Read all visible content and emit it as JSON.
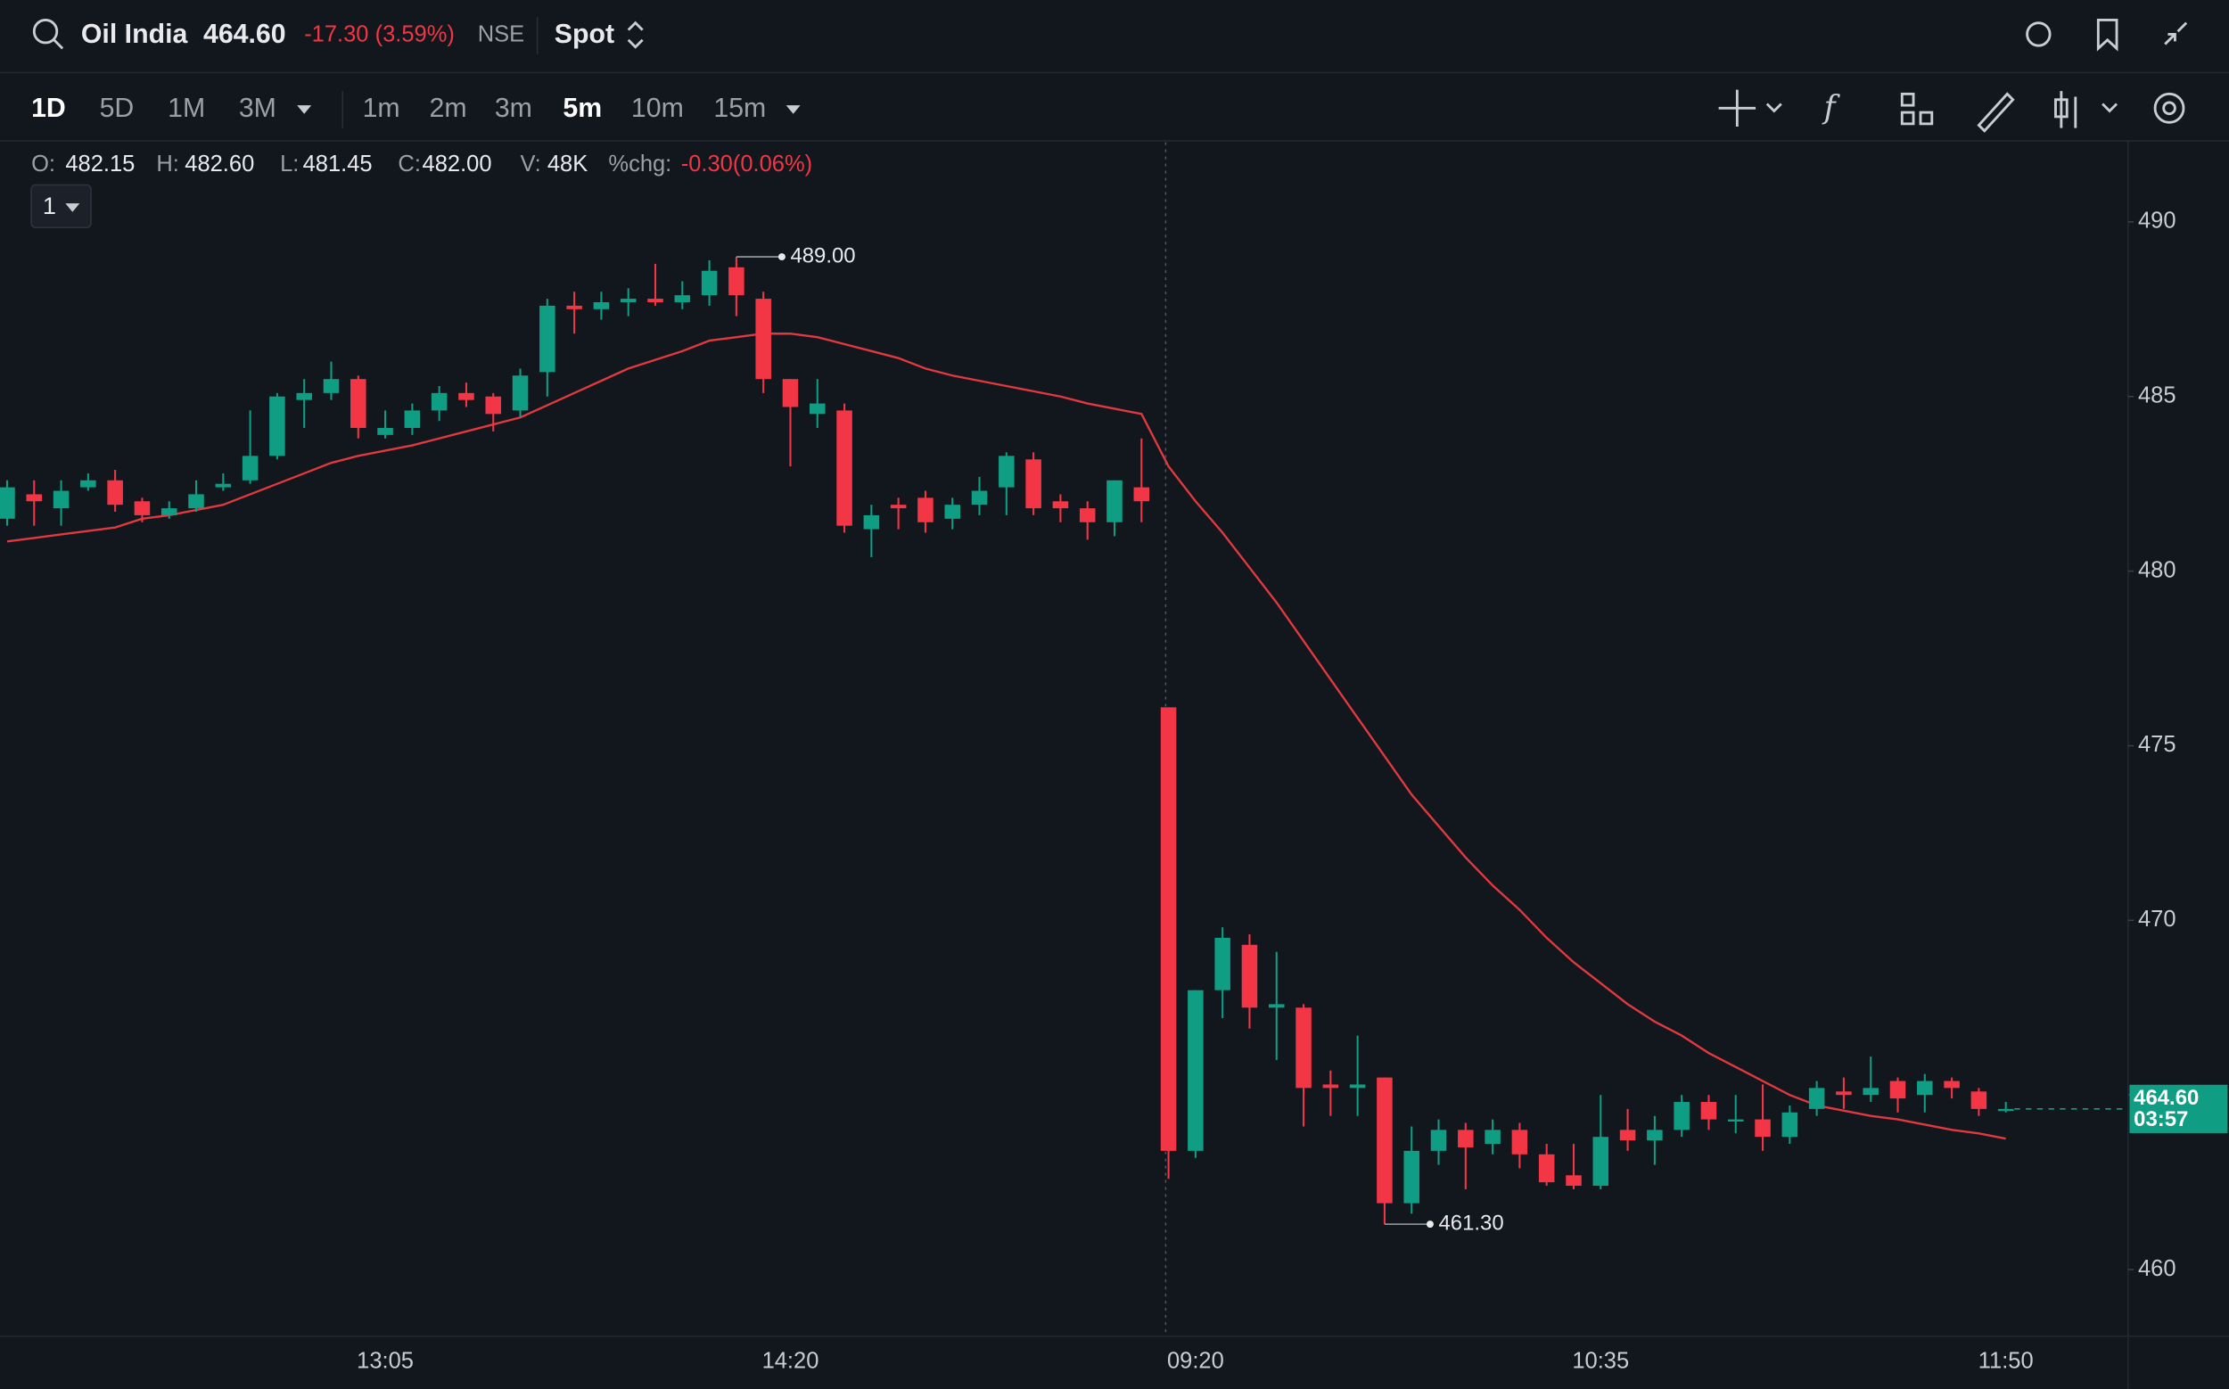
{
  "header": {
    "symbol": "Oil India",
    "price": "464.60",
    "change": "-17.30 (3.59%)",
    "exchange": "NSE",
    "mode": "Spot"
  },
  "toolbar": {
    "ranges": [
      "1D",
      "5D",
      "1M",
      "3M"
    ],
    "intervals": [
      "1m",
      "2m",
      "3m",
      "5m",
      "10m",
      "15m"
    ]
  },
  "legend": {
    "o_label": "O:",
    "o": "482.15",
    "h_label": "H:",
    "h": "482.60",
    "l_label": "L:",
    "l": "481.45",
    "c_label": "C:",
    "c": "482.00",
    "v_label": "V:",
    "v": "48K",
    "chg_label": "%chg:",
    "chg": "-0.30(0.06%)"
  },
  "pane_selector": "1",
  "chart_data": {
    "type": "candlestick",
    "categories": [
      null,
      null,
      null,
      null,
      null,
      null,
      null,
      null,
      null,
      null,
      null,
      null,
      null,
      null,
      "13:05",
      null,
      null,
      null,
      null,
      null,
      null,
      null,
      null,
      null,
      null,
      null,
      null,
      null,
      null,
      "14:20",
      null,
      null,
      null,
      null,
      null,
      null,
      null,
      null,
      null,
      null,
      null,
      null,
      null,
      null,
      "09:20",
      null,
      null,
      null,
      null,
      null,
      null,
      null,
      null,
      null,
      null,
      null,
      null,
      null,
      null,
      "10:35",
      null,
      null,
      null,
      null,
      null,
      null,
      null,
      null,
      null,
      null,
      null,
      null,
      null,
      null,
      "11:50"
    ],
    "candles": {
      "up_color": "#0f9d84",
      "down_color": "#f23645",
      "open": [
        481.5,
        482.2,
        481.8,
        482.4,
        482.6,
        482.0,
        481.6,
        481.8,
        482.4,
        482.6,
        483.3,
        484.9,
        485.1,
        485.5,
        483.9,
        484.1,
        484.6,
        485.1,
        485.0,
        484.6,
        485.7,
        487.6,
        487.5,
        487.7,
        487.8,
        487.7,
        487.9,
        488.7,
        487.8,
        485.5,
        484.5,
        484.6,
        481.2,
        481.9,
        482.1,
        481.5,
        481.9,
        482.4,
        483.2,
        482.0,
        481.8,
        481.4,
        482.4,
        476.1,
        463.4,
        468.0,
        469.3,
        467.5,
        467.5,
        465.3,
        465.2,
        465.5,
        461.9,
        463.4,
        464.0,
        463.6,
        464.0,
        463.3,
        462.7,
        462.4,
        464.0,
        463.7,
        464.0,
        464.8,
        464.3,
        464.3,
        463.8,
        464.6,
        465.1,
        465.0,
        465.4,
        465.0,
        465.4,
        465.1,
        464.6
      ],
      "high": [
        482.6,
        482.6,
        482.6,
        482.8,
        482.9,
        482.1,
        482.0,
        482.6,
        482.8,
        484.6,
        485.1,
        485.5,
        486.0,
        485.6,
        484.6,
        484.8,
        485.3,
        485.4,
        485.1,
        485.8,
        487.8,
        488.0,
        488.0,
        488.1,
        488.8,
        488.3,
        488.9,
        489.0,
        488.0,
        485.5,
        485.5,
        484.8,
        481.9,
        482.1,
        482.3,
        482.1,
        482.7,
        483.4,
        483.4,
        482.2,
        482.0,
        482.6,
        483.8,
        476.1,
        468.0,
        469.8,
        469.6,
        469.1,
        467.6,
        465.7,
        466.7,
        465.5,
        464.1,
        464.3,
        464.2,
        464.3,
        464.2,
        463.6,
        463.6,
        465.0,
        464.6,
        464.4,
        465.0,
        465.0,
        465.0,
        465.3,
        464.7,
        465.4,
        465.5,
        466.1,
        465.5,
        465.6,
        465.5,
        465.2,
        464.8
      ],
      "low": [
        481.3,
        481.3,
        481.3,
        482.3,
        481.7,
        481.4,
        481.5,
        481.7,
        482.3,
        482.5,
        483.2,
        484.1,
        484.9,
        483.8,
        483.8,
        483.9,
        484.3,
        484.7,
        484.0,
        484.4,
        485.0,
        486.8,
        487.2,
        487.3,
        487.6,
        487.5,
        487.6,
        487.3,
        485.1,
        483.0,
        484.1,
        481.1,
        480.4,
        481.2,
        481.1,
        481.2,
        481.6,
        481.6,
        481.6,
        481.4,
        480.9,
        481.0,
        481.4,
        462.6,
        463.2,
        467.2,
        466.9,
        466.0,
        464.1,
        464.4,
        464.4,
        461.3,
        461.6,
        463.0,
        462.3,
        463.3,
        462.9,
        462.4,
        462.3,
        462.3,
        463.4,
        463.0,
        463.8,
        464.0,
        463.9,
        463.4,
        463.6,
        464.4,
        464.6,
        464.8,
        464.5,
        464.5,
        464.9,
        464.4,
        464.5
      ],
      "close": [
        482.4,
        482.0,
        482.3,
        482.6,
        481.9,
        481.6,
        481.8,
        482.2,
        482.5,
        483.3,
        485.0,
        485.1,
        485.5,
        484.1,
        484.1,
        484.6,
        485.1,
        484.9,
        484.5,
        485.6,
        487.6,
        487.5,
        487.7,
        487.8,
        487.7,
        487.9,
        488.6,
        487.9,
        485.5,
        484.7,
        484.8,
        481.3,
        481.6,
        481.8,
        481.4,
        481.9,
        482.3,
        483.3,
        481.8,
        481.8,
        481.4,
        482.6,
        482.0,
        463.4,
        468.0,
        469.5,
        467.5,
        467.6,
        465.2,
        465.2,
        465.3,
        461.9,
        463.4,
        464.0,
        463.5,
        464.0,
        463.3,
        462.5,
        462.4,
        463.8,
        463.7,
        464.0,
        464.8,
        464.3,
        464.3,
        463.8,
        464.5,
        465.2,
        465.0,
        465.2,
        464.9,
        465.4,
        465.2,
        464.6,
        464.6
      ]
    },
    "lines": [
      {
        "color": "#e0393f",
        "values": [
          480.85,
          480.95,
          481.05,
          481.15,
          481.25,
          481.5,
          481.6,
          481.75,
          481.9,
          482.2,
          482.5,
          482.8,
          483.1,
          483.3,
          483.45,
          483.6,
          483.8,
          484.0,
          484.2,
          484.4,
          484.75,
          485.1,
          485.45,
          485.8,
          486.05,
          486.3,
          486.6,
          486.7,
          486.8,
          486.8,
          486.7,
          486.5,
          486.3,
          486.1,
          485.8,
          485.6,
          485.45,
          485.3,
          485.15,
          485.0,
          484.8,
          484.65,
          484.5,
          483.0,
          482.0,
          481.1,
          480.1,
          479.1,
          478.0,
          476.9,
          475.8,
          474.7,
          473.6,
          472.7,
          471.8,
          471.0,
          470.3,
          469.5,
          468.8,
          468.2,
          467.6,
          467.1,
          466.7,
          466.2,
          465.8,
          465.4,
          465.0,
          464.7,
          464.55,
          464.4,
          464.3,
          464.15,
          464.0,
          463.9,
          463.75
        ]
      }
    ],
    "high_marker": {
      "value": 489.0,
      "label": "489.00"
    },
    "low_marker": {
      "value": 461.3,
      "label": "461.30"
    },
    "last_price": {
      "value": 464.6,
      "label": "464.60",
      "countdown": "03:57",
      "color": "#0f9d84"
    },
    "ylim": [
      458.09,
      492.28
    ],
    "yticks": [
      460,
      465,
      470,
      475,
      480,
      485,
      490
    ],
    "ytick_labels_shown": [
      460,
      470,
      475,
      480,
      485,
      490
    ]
  }
}
